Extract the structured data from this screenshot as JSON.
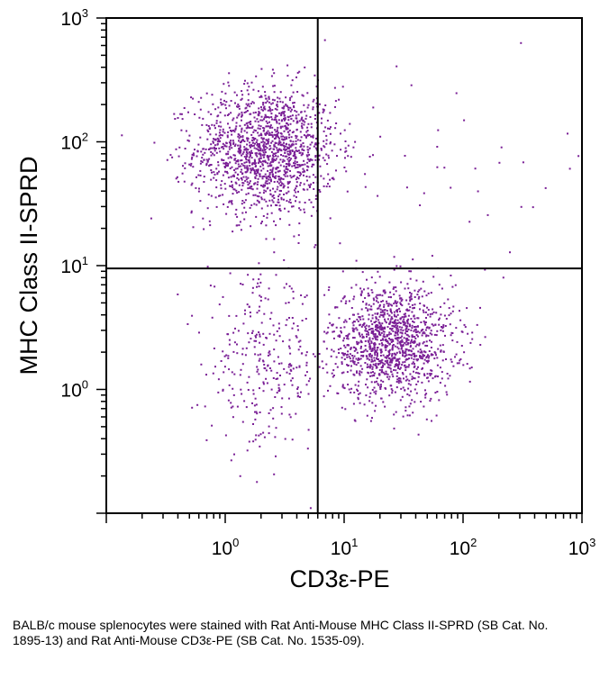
{
  "chart_data": {
    "type": "scatter",
    "subtype": "flow-cytometry-quadrant-dot-plot",
    "xlabel": "CD3ε-PE",
    "ylabel": "MHC Class II-SPRD",
    "x_scale": "log",
    "y_scale": "log",
    "xlim": [
      0.1,
      1000
    ],
    "ylim": [
      0.1,
      1000
    ],
    "x_ticks": [
      {
        "base": "10",
        "exp": "0"
      },
      {
        "base": "10",
        "exp": "1"
      },
      {
        "base": "10",
        "exp": "2"
      },
      {
        "base": "10",
        "exp": "3"
      }
    ],
    "y_ticks": [
      {
        "base": "10",
        "exp": "0"
      },
      {
        "base": "10",
        "exp": "1"
      },
      {
        "base": "10",
        "exp": "2"
      },
      {
        "base": "10",
        "exp": "3"
      }
    ],
    "quadrant_gates": {
      "x": 6,
      "y": 9.5
    },
    "point_color": "#7a1f96",
    "populations": [
      {
        "name": "MHC II+ CD3- (upper left)",
        "center": [
          2.2,
          85
        ],
        "spread_log10": [
          0.3,
          0.26
        ],
        "count": 1500
      },
      {
        "name": "MHC II- CD3+ (lower right)",
        "center": [
          25,
          2.4
        ],
        "spread_log10": [
          0.26,
          0.24
        ],
        "count": 1300
      },
      {
        "name": "double negative (lower left)",
        "center": [
          2.1,
          1.6
        ],
        "spread_log10": [
          0.24,
          0.34
        ],
        "count": 300
      },
      {
        "name": "scatter (upper right)",
        "center": [
          90,
          60
        ],
        "spread_log10": [
          0.6,
          0.4
        ],
        "count": 35
      }
    ]
  },
  "caption": "BALB/c mouse splenocytes were stained with Rat Anti-Mouse MHC Class II-SPRD (SB Cat. No. 1895-13) and Rat Anti-Mouse CD3ε-PE (SB Cat. No. 1535-09)."
}
